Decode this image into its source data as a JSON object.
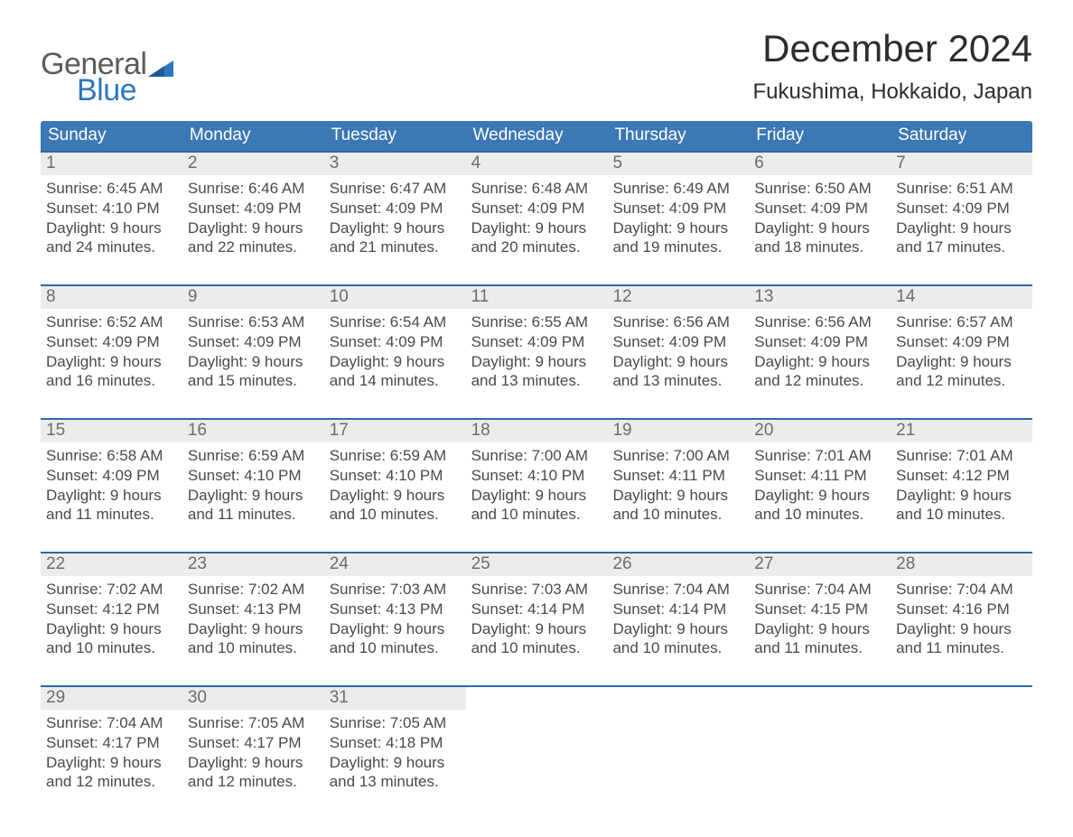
{
  "colors": {
    "header_blue": "#3b78b5",
    "accent_blue": "#2b6aa8",
    "row_bg": "#ececec",
    "text_dark": "#4a4a4a",
    "text_darker": "#2d2d2d",
    "logo_gray": "#5a5a5a",
    "logo_blue": "#2b78bf",
    "white": "#ffffff"
  },
  "logo": {
    "word1": "General",
    "word2": "Blue"
  },
  "title": "December 2024",
  "subtitle": "Fukushima, Hokkaido, Japan",
  "days_of_week": [
    "Sunday",
    "Monday",
    "Tuesday",
    "Wednesday",
    "Thursday",
    "Friday",
    "Saturday"
  ],
  "labels": {
    "sunrise": "Sunrise:",
    "sunset": "Sunset:",
    "daylight": "Daylight:"
  },
  "weeks": [
    [
      {
        "n": "1",
        "sunrise": "6:45 AM",
        "sunset": "4:10 PM",
        "daylight": "9 hours and 24 minutes."
      },
      {
        "n": "2",
        "sunrise": "6:46 AM",
        "sunset": "4:09 PM",
        "daylight": "9 hours and 22 minutes."
      },
      {
        "n": "3",
        "sunrise": "6:47 AM",
        "sunset": "4:09 PM",
        "daylight": "9 hours and 21 minutes."
      },
      {
        "n": "4",
        "sunrise": "6:48 AM",
        "sunset": "4:09 PM",
        "daylight": "9 hours and 20 minutes."
      },
      {
        "n": "5",
        "sunrise": "6:49 AM",
        "sunset": "4:09 PM",
        "daylight": "9 hours and 19 minutes."
      },
      {
        "n": "6",
        "sunrise": "6:50 AM",
        "sunset": "4:09 PM",
        "daylight": "9 hours and 18 minutes."
      },
      {
        "n": "7",
        "sunrise": "6:51 AM",
        "sunset": "4:09 PM",
        "daylight": "9 hours and 17 minutes."
      }
    ],
    [
      {
        "n": "8",
        "sunrise": "6:52 AM",
        "sunset": "4:09 PM",
        "daylight": "9 hours and 16 minutes."
      },
      {
        "n": "9",
        "sunrise": "6:53 AM",
        "sunset": "4:09 PM",
        "daylight": "9 hours and 15 minutes."
      },
      {
        "n": "10",
        "sunrise": "6:54 AM",
        "sunset": "4:09 PM",
        "daylight": "9 hours and 14 minutes."
      },
      {
        "n": "11",
        "sunrise": "6:55 AM",
        "sunset": "4:09 PM",
        "daylight": "9 hours and 13 minutes."
      },
      {
        "n": "12",
        "sunrise": "6:56 AM",
        "sunset": "4:09 PM",
        "daylight": "9 hours and 13 minutes."
      },
      {
        "n": "13",
        "sunrise": "6:56 AM",
        "sunset": "4:09 PM",
        "daylight": "9 hours and 12 minutes."
      },
      {
        "n": "14",
        "sunrise": "6:57 AM",
        "sunset": "4:09 PM",
        "daylight": "9 hours and 12 minutes."
      }
    ],
    [
      {
        "n": "15",
        "sunrise": "6:58 AM",
        "sunset": "4:09 PM",
        "daylight": "9 hours and 11 minutes."
      },
      {
        "n": "16",
        "sunrise": "6:59 AM",
        "sunset": "4:10 PM",
        "daylight": "9 hours and 11 minutes."
      },
      {
        "n": "17",
        "sunrise": "6:59 AM",
        "sunset": "4:10 PM",
        "daylight": "9 hours and 10 minutes."
      },
      {
        "n": "18",
        "sunrise": "7:00 AM",
        "sunset": "4:10 PM",
        "daylight": "9 hours and 10 minutes."
      },
      {
        "n": "19",
        "sunrise": "7:00 AM",
        "sunset": "4:11 PM",
        "daylight": "9 hours and 10 minutes."
      },
      {
        "n": "20",
        "sunrise": "7:01 AM",
        "sunset": "4:11 PM",
        "daylight": "9 hours and 10 minutes."
      },
      {
        "n": "21",
        "sunrise": "7:01 AM",
        "sunset": "4:12 PM",
        "daylight": "9 hours and 10 minutes."
      }
    ],
    [
      {
        "n": "22",
        "sunrise": "7:02 AM",
        "sunset": "4:12 PM",
        "daylight": "9 hours and 10 minutes."
      },
      {
        "n": "23",
        "sunrise": "7:02 AM",
        "sunset": "4:13 PM",
        "daylight": "9 hours and 10 minutes."
      },
      {
        "n": "24",
        "sunrise": "7:03 AM",
        "sunset": "4:13 PM",
        "daylight": "9 hours and 10 minutes."
      },
      {
        "n": "25",
        "sunrise": "7:03 AM",
        "sunset": "4:14 PM",
        "daylight": "9 hours and 10 minutes."
      },
      {
        "n": "26",
        "sunrise": "7:04 AM",
        "sunset": "4:14 PM",
        "daylight": "9 hours and 10 minutes."
      },
      {
        "n": "27",
        "sunrise": "7:04 AM",
        "sunset": "4:15 PM",
        "daylight": "9 hours and 11 minutes."
      },
      {
        "n": "28",
        "sunrise": "7:04 AM",
        "sunset": "4:16 PM",
        "daylight": "9 hours and 11 minutes."
      }
    ],
    [
      {
        "n": "29",
        "sunrise": "7:04 AM",
        "sunset": "4:17 PM",
        "daylight": "9 hours and 12 minutes."
      },
      {
        "n": "30",
        "sunrise": "7:05 AM",
        "sunset": "4:17 PM",
        "daylight": "9 hours and 12 minutes."
      },
      {
        "n": "31",
        "sunrise": "7:05 AM",
        "sunset": "4:18 PM",
        "daylight": "9 hours and 13 minutes."
      },
      null,
      null,
      null,
      null
    ]
  ]
}
